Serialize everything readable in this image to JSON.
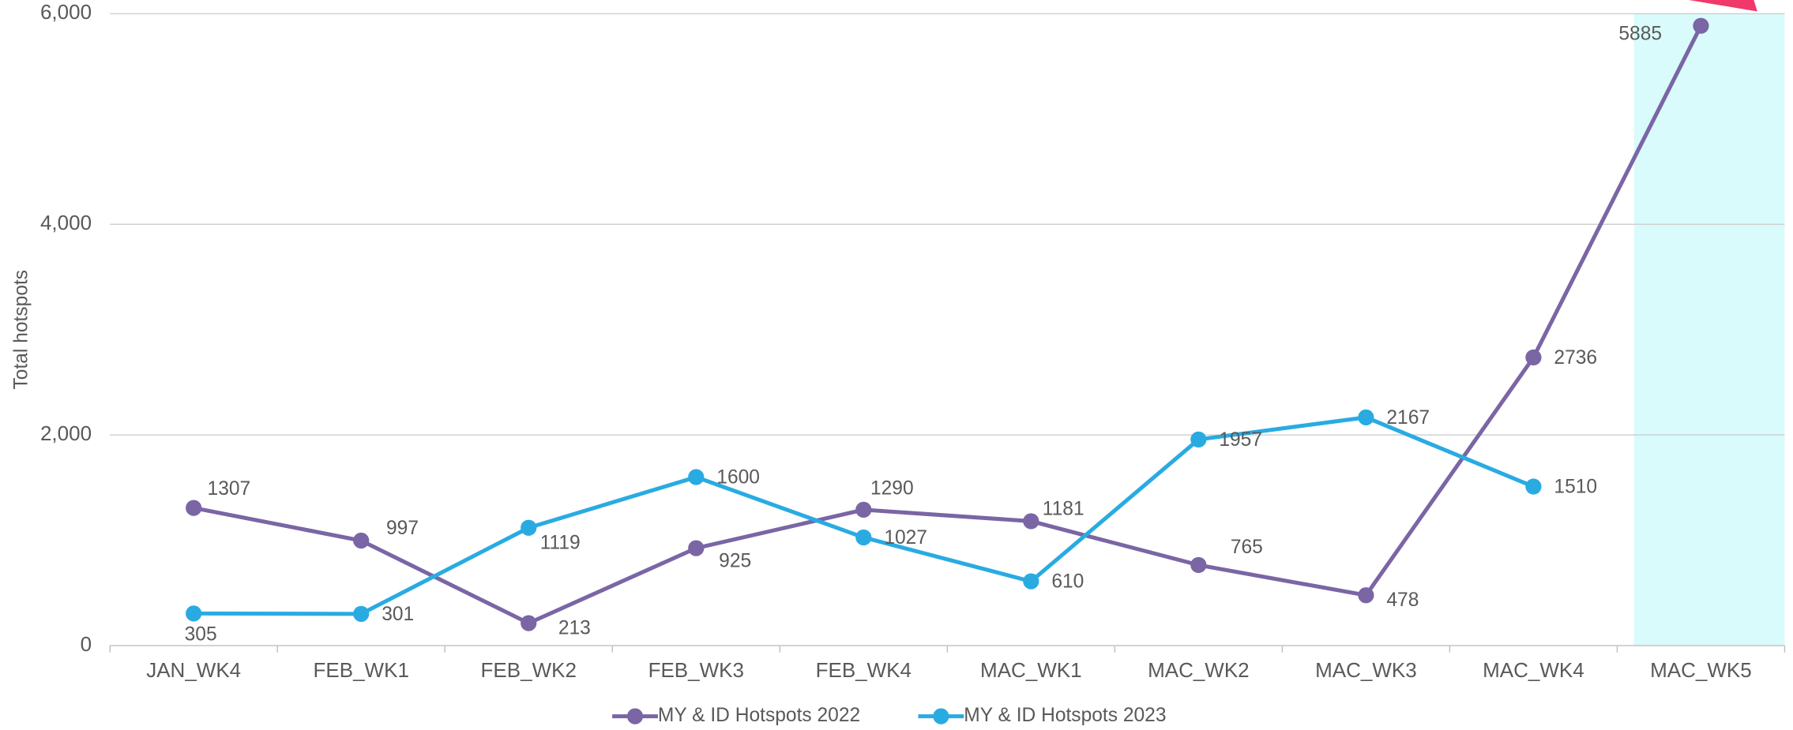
{
  "chart_data": {
    "type": "line",
    "y_label": "Total hotspots",
    "categories": [
      "JAN_WK4",
      "FEB_WK1",
      "FEB_WK2",
      "FEB_WK3",
      "FEB_WK4",
      "MAC_WK1",
      "MAC_WK2",
      "MAC_WK3",
      "MAC_WK4",
      "MAC_WK5"
    ],
    "series": [
      {
        "name": "MY & ID Hotspots 2022",
        "color": "#7a65a5",
        "values": [
          1307,
          997,
          213,
          925,
          1290,
          1181,
          765,
          478,
          2736,
          5885
        ]
      },
      {
        "name": "MY & ID Hotspots 2023",
        "color": "#29abe2",
        "values": [
          305,
          301,
          1119,
          1600,
          1027,
          610,
          1957,
          2167,
          1510,
          null
        ]
      }
    ],
    "ylim": [
      0,
      6000
    ],
    "yticks": [
      0,
      {
        "value": 2000,
        "label": "2,000"
      },
      {
        "value": 4000,
        "label": "4,000"
      },
      {
        "value": 6000,
        "label": "6,000"
      }
    ],
    "grid": true,
    "legend": "bottom"
  }
}
